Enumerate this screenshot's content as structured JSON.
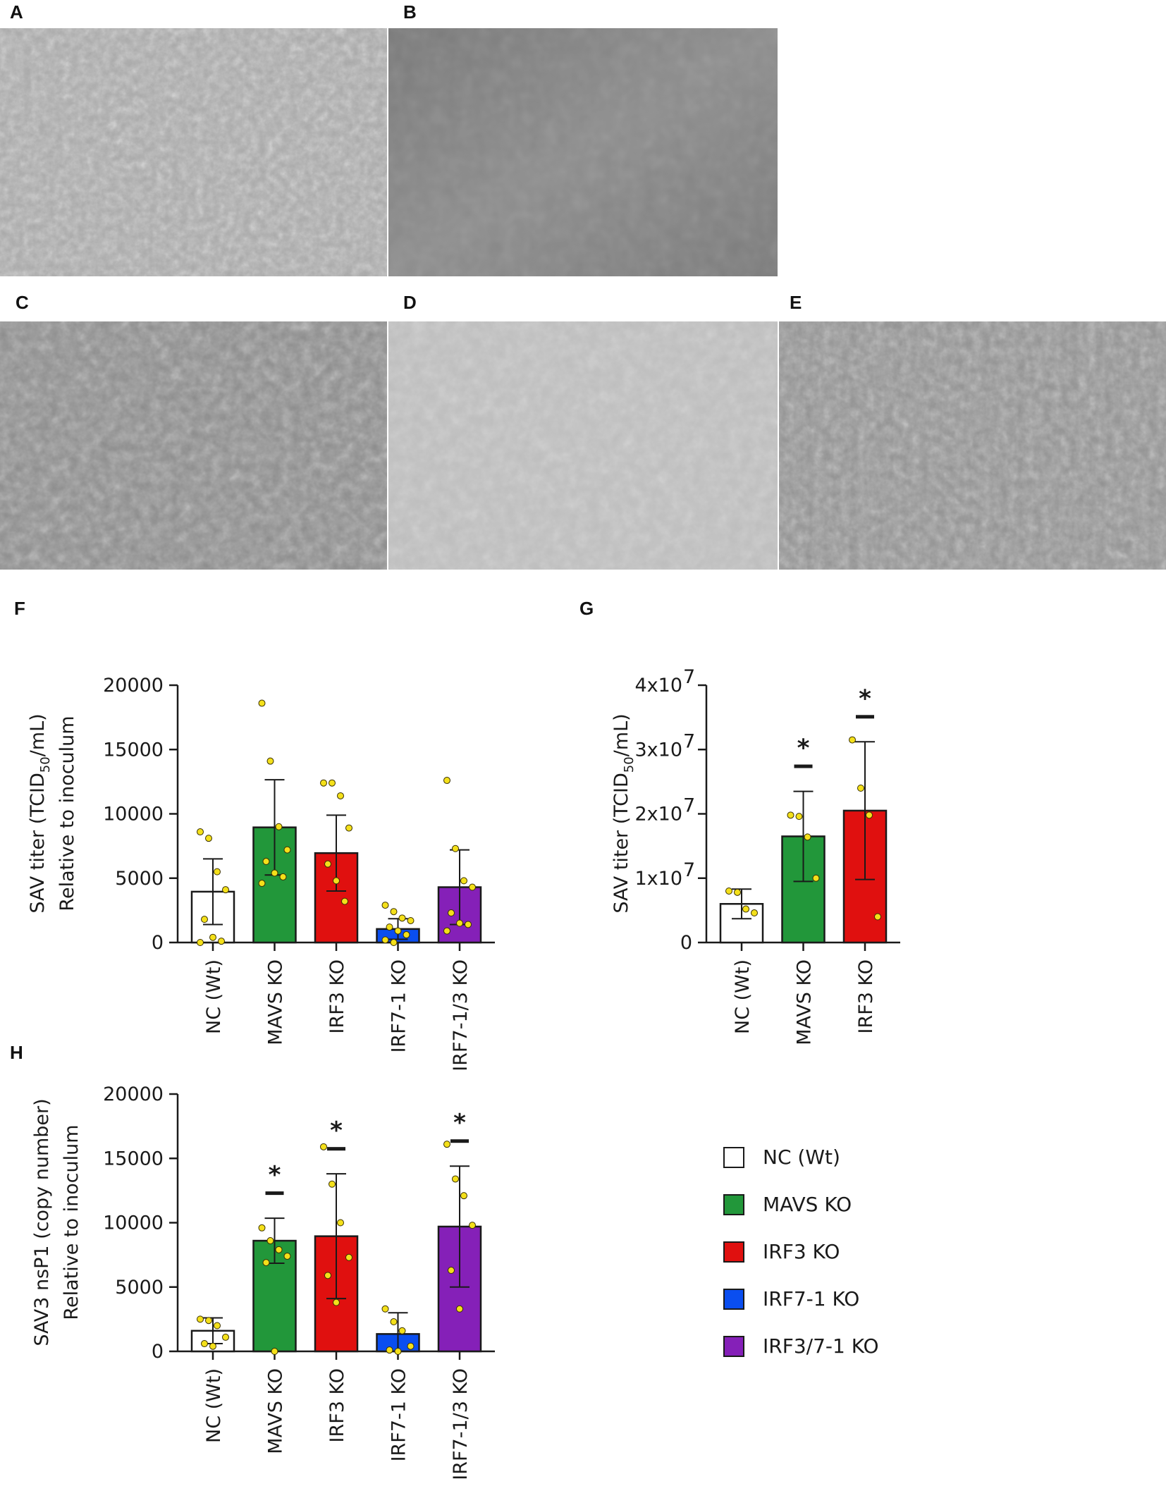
{
  "panels": {
    "a": "A",
    "b": "B",
    "c": "C",
    "d": "D",
    "e": "E",
    "f": "F",
    "g": "G",
    "h": "H"
  },
  "colors": {
    "nc": "#ffffff",
    "mavs": "#22973a",
    "irf3": "#e0100f",
    "irf7": "#0a4ef0",
    "irf37": "#8520b8",
    "point": "#f4e01a",
    "axis": "#1a1a1a"
  },
  "chart_data": [
    {
      "id": "F",
      "type": "bar",
      "categories": [
        "NC (Wt)",
        "MAVS KO",
        "IRF3 KO",
        "IRF7-1 KO",
        "IRF7-1/3 KO"
      ],
      "values": [
        3950,
        8950,
        6950,
        1050,
        4300
      ],
      "errors": [
        2550,
        3700,
        2950,
        800,
        2900
      ],
      "points": [
        [
          8600,
          8100,
          5500,
          4100,
          1800,
          400,
          100,
          0
        ],
        [
          18600,
          14100,
          9000,
          7200,
          6300,
          5400,
          5100,
          4600
        ],
        [
          12400,
          12400,
          11400,
          8900,
          6100,
          4800,
          3200
        ],
        [
          2900,
          2400,
          1900,
          1700,
          1200,
          900,
          600,
          200,
          0
        ],
        [
          12600,
          7300,
          4800,
          4300,
          2300,
          1500,
          1400,
          900
        ]
      ],
      "ylabel_line1": "SAV titer (TCID",
      "ylabel_sub": "50",
      "ylabel_line1_end": "/mL)",
      "ylabel_line2": "Relative to inoculum",
      "ylim": [
        0,
        20000
      ],
      "yticks": [
        "0",
        "5000",
        "10000",
        "15000",
        "20000"
      ],
      "significance": [
        false,
        false,
        false,
        false,
        false
      ]
    },
    {
      "id": "G",
      "type": "bar",
      "categories": [
        "NC (Wt)",
        "MAVS KO",
        "IRF3 KO"
      ],
      "values": [
        6000000,
        16500000,
        20500000
      ],
      "errors": [
        2300000,
        7000000,
        10700000
      ],
      "points": [
        [
          8000000,
          7800000,
          5200000,
          4600000
        ],
        [
          19800000,
          19600000,
          16400000,
          10000000
        ],
        [
          31500000,
          24000000,
          19800000,
          4000000
        ]
      ],
      "ylabel_line1": "SAV titer (TCID",
      "ylabel_sub": "50",
      "ylabel_line1_end": "/mL)",
      "ylim": [
        0,
        40000000
      ],
      "yticks": [
        "0",
        "1x10",
        "2x10",
        "3x10",
        "4x10"
      ],
      "ytick_exponent": "7",
      "significance": [
        false,
        true,
        true
      ],
      "star": "*"
    },
    {
      "id": "H",
      "type": "bar",
      "categories": [
        "NC (Wt)",
        "MAVS KO",
        "IRF3 KO",
        "IRF7-1 KO",
        "IRF7-1/3 KO"
      ],
      "values": [
        1600,
        8600,
        8950,
        1350,
        9700
      ],
      "errors": [
        1000,
        1750,
        4850,
        1650,
        4700
      ],
      "points": [
        [
          2500,
          2400,
          2000,
          1100,
          600,
          400
        ],
        [
          9600,
          8600,
          7900,
          7400,
          6900,
          0
        ],
        [
          15900,
          13000,
          10000,
          7300,
          5900,
          3800
        ],
        [
          3300,
          2300,
          1600,
          400,
          100,
          0
        ],
        [
          16100,
          13400,
          12100,
          9800,
          6300,
          3300
        ]
      ],
      "ylabel_line1": "SAV3 nsP1 (copy number)",
      "ylabel_line2": "Relative to inoculum",
      "ylim": [
        0,
        20000
      ],
      "yticks": [
        "0",
        "5000",
        "10000",
        "15000",
        "20000"
      ],
      "significance": [
        false,
        true,
        true,
        false,
        true
      ],
      "star": "*"
    }
  ],
  "legend": {
    "items": [
      {
        "label": "NC (Wt)",
        "color": "#ffffff"
      },
      {
        "label": "MAVS KO",
        "color": "#22973a"
      },
      {
        "label": "IRF3 KO",
        "color": "#e0100f"
      },
      {
        "label": "IRF7-1 KO",
        "color": "#0a4ef0"
      },
      {
        "label": "IRF3/7-1 KO",
        "color": "#8520b8"
      }
    ]
  }
}
